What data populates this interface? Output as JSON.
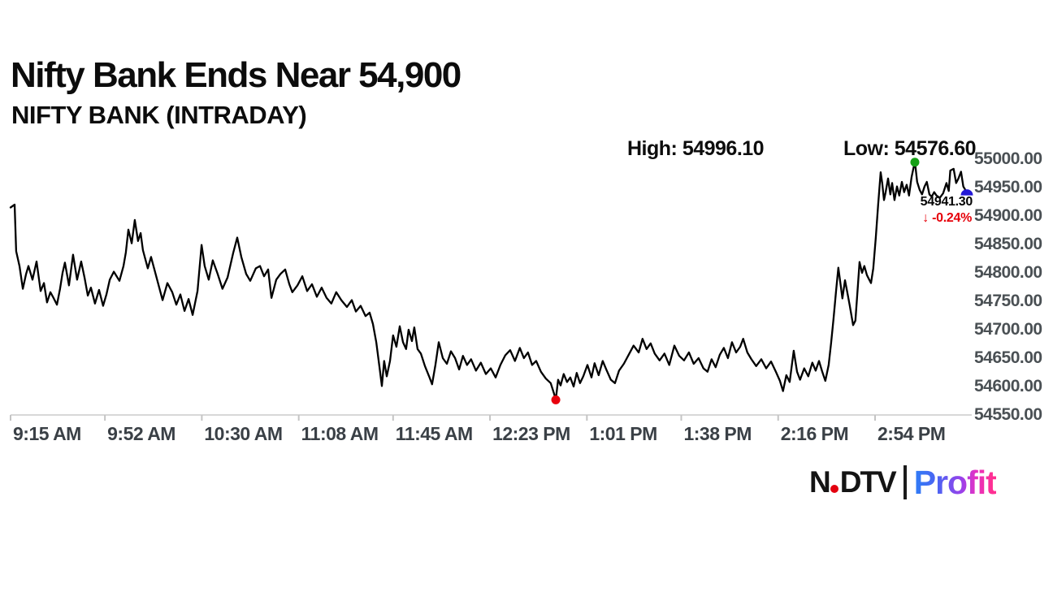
{
  "header": {
    "title": "Nifty Bank Ends Near 54,900",
    "subtitle": "NIFTY BANK (INTRADAY)"
  },
  "annotations": {
    "high_label": "High: 54996.10",
    "low_label": "Low: 54576.60",
    "last_price": "54941.30",
    "change_arrow": "↓",
    "change_text": "-0.24%"
  },
  "logo": {
    "ndtv_n": "N",
    "ndtv_dtv": "DTV",
    "profit": "Profit"
  },
  "colors": {
    "line": "#000000",
    "high_marker": "#16a016",
    "low_marker": "#e8000d",
    "close_marker": "#2318d6",
    "change_red": "#e60009",
    "axis_line": "#d8d8d8",
    "tick": "#c4c4c4"
  },
  "chart_data": {
    "type": "line",
    "title": "NIFTY BANK (INTRADAY)",
    "xlabel": "",
    "ylabel": "",
    "grid": false,
    "legend": "none",
    "x_axis": {
      "start_time": "9:15 AM",
      "end_time": "3:30 PM",
      "tick_labels": [
        "9:15 AM",
        "9:52 AM",
        "10:30 AM",
        "11:08 AM",
        "11:45 AM",
        "12:23 PM",
        "1:01 PM",
        "1:38 PM",
        "2:16 PM",
        "2:54 PM"
      ],
      "tick_minutes": [
        0,
        37,
        75,
        113,
        150,
        188,
        226,
        263,
        301,
        339
      ],
      "total_minutes": 375
    },
    "y_axis": {
      "tick_labels": [
        "55000.00",
        "54950.00",
        "54900.00",
        "54850.00",
        "54800.00",
        "54750.00",
        "54700.00",
        "54650.00",
        "54600.00",
        "54550.00"
      ],
      "min": 54550,
      "max": 55000,
      "step": 50
    },
    "open": 54915,
    "high": 54996.1,
    "low": 54576.6,
    "close": 54941.3,
    "change_pct": -0.24,
    "markers": {
      "high": {
        "t": 354.6,
        "price": 54996.1
      },
      "low": {
        "t": 213.8,
        "price": 54576.6
      },
      "close": {
        "t": 375,
        "price": 54941.3
      }
    },
    "series": [
      [
        0,
        54915
      ],
      [
        1.6,
        54920
      ],
      [
        2.2,
        54838
      ],
      [
        3.5,
        54812
      ],
      [
        4.8,
        54772
      ],
      [
        6.1,
        54798
      ],
      [
        7,
        54812
      ],
      [
        8.6,
        54788
      ],
      [
        10.2,
        54820
      ],
      [
        11.8,
        54768
      ],
      [
        13.1,
        54782
      ],
      [
        14.3,
        54748
      ],
      [
        15.6,
        54766
      ],
      [
        16.6,
        54758
      ],
      [
        18.2,
        54744
      ],
      [
        19.4,
        54772
      ],
      [
        20.4,
        54800
      ],
      [
        21.3,
        54818
      ],
      [
        22.9,
        54778
      ],
      [
        24.5,
        54832
      ],
      [
        26.1,
        54788
      ],
      [
        27.7,
        54820
      ],
      [
        29,
        54792
      ],
      [
        30.3,
        54760
      ],
      [
        31.5,
        54774
      ],
      [
        33.1,
        54746
      ],
      [
        34.7,
        54770
      ],
      [
        36.3,
        54742
      ],
      [
        37.6,
        54762
      ],
      [
        38.9,
        54788
      ],
      [
        40.5,
        54802
      ],
      [
        42.7,
        54786
      ],
      [
        44.3,
        54812
      ],
      [
        45.2,
        54836
      ],
      [
        46.2,
        54876
      ],
      [
        47.5,
        54852
      ],
      [
        48.7,
        54893
      ],
      [
        50,
        54856
      ],
      [
        51,
        54870
      ],
      [
        51.9,
        54840
      ],
      [
        53.8,
        54808
      ],
      [
        55.1,
        54828
      ],
      [
        57,
        54796
      ],
      [
        58.3,
        54774
      ],
      [
        59.6,
        54752
      ],
      [
        61.5,
        54782
      ],
      [
        63.4,
        54766
      ],
      [
        65,
        54744
      ],
      [
        66.6,
        54762
      ],
      [
        68.2,
        54733
      ],
      [
        69.8,
        54754
      ],
      [
        71.4,
        54726
      ],
      [
        73.3,
        54768
      ],
      [
        74.9,
        54849
      ],
      [
        76.1,
        54812
      ],
      [
        77.7,
        54788
      ],
      [
        79.3,
        54822
      ],
      [
        81.2,
        54798
      ],
      [
        83.1,
        54772
      ],
      [
        85.1,
        54792
      ],
      [
        87.3,
        54835
      ],
      [
        88.9,
        54862
      ],
      [
        90.5,
        54828
      ],
      [
        92.4,
        54798
      ],
      [
        94,
        54786
      ],
      [
        96.2,
        54808
      ],
      [
        97.8,
        54812
      ],
      [
        99.4,
        54794
      ],
      [
        101,
        54806
      ],
      [
        102.3,
        54756
      ],
      [
        104.2,
        54788
      ],
      [
        105.8,
        54798
      ],
      [
        107.7,
        54806
      ],
      [
        109.3,
        54780
      ],
      [
        110.5,
        54766
      ],
      [
        112.5,
        54778
      ],
      [
        114.4,
        54794
      ],
      [
        116.3,
        54768
      ],
      [
        118.2,
        54780
      ],
      [
        120.1,
        54758
      ],
      [
        122,
        54774
      ],
      [
        123.9,
        54756
      ],
      [
        125.8,
        54746
      ],
      [
        127.7,
        54766
      ],
      [
        129.7,
        54752
      ],
      [
        131.9,
        54740
      ],
      [
        133.8,
        54752
      ],
      [
        135.4,
        54732
      ],
      [
        137.3,
        54742
      ],
      [
        139.2,
        54724
      ],
      [
        140.8,
        54730
      ],
      [
        142.1,
        54710
      ],
      [
        143.4,
        54678
      ],
      [
        144.6,
        54636
      ],
      [
        145.6,
        54601
      ],
      [
        146.5,
        54645
      ],
      [
        147.5,
        54618
      ],
      [
        148.8,
        54645
      ],
      [
        150,
        54690
      ],
      [
        151.3,
        54670
      ],
      [
        152.6,
        54706
      ],
      [
        153.9,
        54678
      ],
      [
        155.1,
        54666
      ],
      [
        156.1,
        54700
      ],
      [
        157.4,
        54680
      ],
      [
        158.3,
        54704
      ],
      [
        159.6,
        54666
      ],
      [
        160.9,
        54658
      ],
      [
        162.5,
        54636
      ],
      [
        164.1,
        54618
      ],
      [
        165.3,
        54604
      ],
      [
        166.6,
        54638
      ],
      [
        167.9,
        54678
      ],
      [
        169.5,
        54650
      ],
      [
        171.1,
        54640
      ],
      [
        172.7,
        54662
      ],
      [
        174.3,
        54650
      ],
      [
        175.9,
        54630
      ],
      [
        177.4,
        54654
      ],
      [
        179,
        54638
      ],
      [
        180.6,
        54648
      ],
      [
        182.5,
        54628
      ],
      [
        184.4,
        54642
      ],
      [
        186.4,
        54622
      ],
      [
        188.3,
        54632
      ],
      [
        190.2,
        54616
      ],
      [
        192.1,
        54638
      ],
      [
        194,
        54655
      ],
      [
        195.9,
        54664
      ],
      [
        197.8,
        54645
      ],
      [
        199.7,
        54668
      ],
      [
        201.3,
        54650
      ],
      [
        202.9,
        54660
      ],
      [
        204.5,
        54638
      ],
      [
        206.1,
        54645
      ],
      [
        208,
        54626
      ],
      [
        209.9,
        54614
      ],
      [
        211.8,
        54606
      ],
      [
        213.1,
        54588
      ],
      [
        213.8,
        54576.6
      ],
      [
        214.7,
        54612
      ],
      [
        215.7,
        54602
      ],
      [
        216.9,
        54622
      ],
      [
        218.2,
        54608
      ],
      [
        219.5,
        54616
      ],
      [
        220.8,
        54600
      ],
      [
        222,
        54624
      ],
      [
        223.3,
        54606
      ],
      [
        224.6,
        54618
      ],
      [
        226.2,
        54638
      ],
      [
        227.8,
        54616
      ],
      [
        229,
        54641
      ],
      [
        230.6,
        54620
      ],
      [
        232.2,
        54645
      ],
      [
        233.8,
        54628
      ],
      [
        235.4,
        54612
      ],
      [
        237,
        54606
      ],
      [
        238.6,
        54628
      ],
      [
        240.5,
        54640
      ],
      [
        242.4,
        54656
      ],
      [
        244.3,
        54672
      ],
      [
        246.3,
        54660
      ],
      [
        247.8,
        54684
      ],
      [
        249.4,
        54666
      ],
      [
        251,
        54676
      ],
      [
        252.6,
        54658
      ],
      [
        254.5,
        54646
      ],
      [
        256.4,
        54658
      ],
      [
        258.3,
        54638
      ],
      [
        260.3,
        54672
      ],
      [
        262.2,
        54654
      ],
      [
        264.1,
        54646
      ],
      [
        266,
        54660
      ],
      [
        267.9,
        54640
      ],
      [
        269.8,
        54650
      ],
      [
        271.7,
        54632
      ],
      [
        273.3,
        54626
      ],
      [
        274.9,
        54648
      ],
      [
        276.5,
        54634
      ],
      [
        278.1,
        54656
      ],
      [
        279.7,
        54668
      ],
      [
        281.3,
        54650
      ],
      [
        282.9,
        54678
      ],
      [
        284.5,
        54660
      ],
      [
        286.1,
        54670
      ],
      [
        287.3,
        54684
      ],
      [
        288.9,
        54660
      ],
      [
        290.5,
        54648
      ],
      [
        292.4,
        54636
      ],
      [
        294.4,
        54648
      ],
      [
        296.3,
        54632
      ],
      [
        298.2,
        54644
      ],
      [
        300.1,
        54626
      ],
      [
        301.7,
        54610
      ],
      [
        302.9,
        54592
      ],
      [
        304.2,
        54620
      ],
      [
        305.5,
        54608
      ],
      [
        307.1,
        54663
      ],
      [
        308.4,
        54626
      ],
      [
        309.6,
        54612
      ],
      [
        311.2,
        54632
      ],
      [
        312.8,
        54618
      ],
      [
        314.4,
        54642
      ],
      [
        315.7,
        54628
      ],
      [
        317,
        54645
      ],
      [
        318.3,
        54626
      ],
      [
        319.5,
        54610
      ],
      [
        320.8,
        54638
      ],
      [
        321.8,
        54678
      ],
      [
        322.7,
        54718
      ],
      [
        323.7,
        54768
      ],
      [
        324.6,
        54809
      ],
      [
        325.6,
        54776
      ],
      [
        326.2,
        54755
      ],
      [
        327.2,
        54787
      ],
      [
        328.1,
        54766
      ],
      [
        329.1,
        54742
      ],
      [
        330.4,
        54708
      ],
      [
        331.3,
        54716
      ],
      [
        332.3,
        54780
      ],
      [
        332.9,
        54819
      ],
      [
        333.9,
        54800
      ],
      [
        334.8,
        54812
      ],
      [
        335.8,
        54796
      ],
      [
        336.7,
        54788
      ],
      [
        337.4,
        54782
      ],
      [
        338.3,
        54808
      ],
      [
        339.3,
        54862
      ],
      [
        340.2,
        54920
      ],
      [
        341.2,
        54977
      ],
      [
        341.8,
        54958
      ],
      [
        342.5,
        54928
      ],
      [
        343.1,
        54941
      ],
      [
        344.1,
        54966
      ],
      [
        345,
        54938
      ],
      [
        345.7,
        54958
      ],
      [
        346.6,
        54928
      ],
      [
        347.6,
        54952
      ],
      [
        348.5,
        54936
      ],
      [
        349.5,
        54960
      ],
      [
        350.4,
        54942
      ],
      [
        351.4,
        54955
      ],
      [
        352.3,
        54936
      ],
      [
        353.3,
        54968
      ],
      [
        354.6,
        54996.1
      ],
      [
        355.5,
        54960
      ],
      [
        356.5,
        54946
      ],
      [
        357.4,
        54938
      ],
      [
        358.4,
        54952
      ],
      [
        359.3,
        54960
      ],
      [
        360.3,
        54938
      ],
      [
        361.2,
        54934
      ],
      [
        362.2,
        54942
      ],
      [
        363.1,
        54936
      ],
      [
        364.4,
        54932
      ],
      [
        365.7,
        54940
      ],
      [
        367,
        54958
      ],
      [
        367.9,
        54944
      ],
      [
        368.5,
        54980
      ],
      [
        369.8,
        54983
      ],
      [
        370.8,
        54958
      ],
      [
        371.7,
        54966
      ],
      [
        372.7,
        54978
      ],
      [
        373.6,
        54952
      ],
      [
        375,
        54941.3
      ]
    ]
  }
}
